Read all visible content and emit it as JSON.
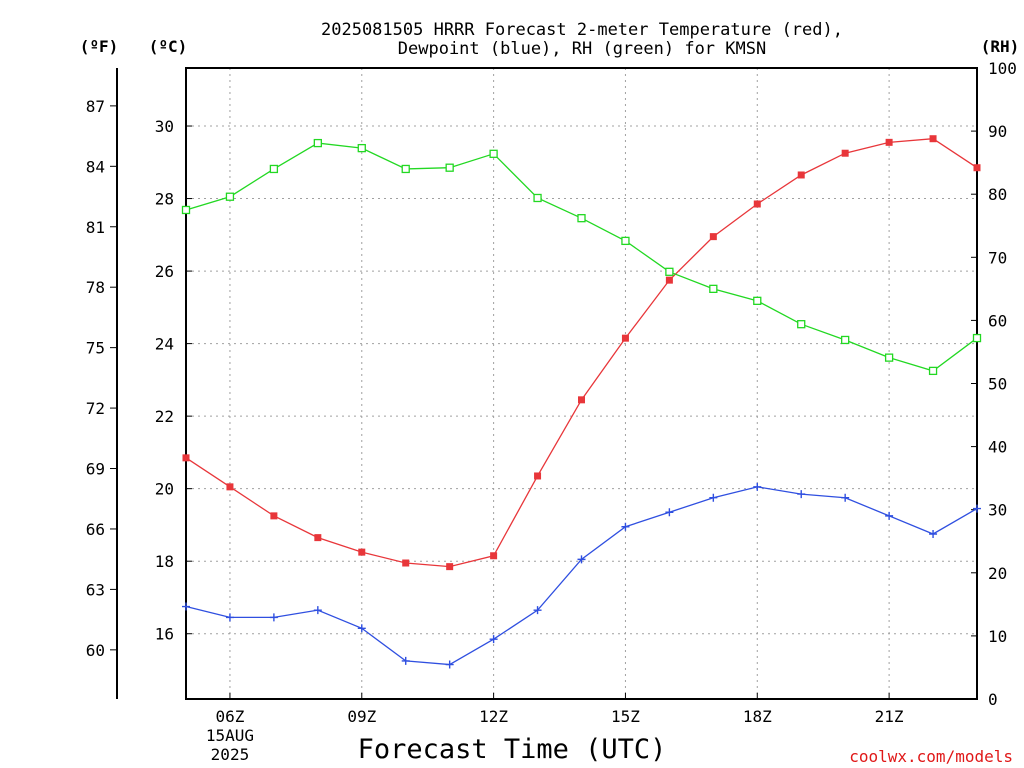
{
  "page": {
    "title_line1": "2025081505 HRRR Forecast 2-meter Temperature (red),",
    "title_line2": "Dewpoint (blue), RH (green) for KMSN",
    "credit": "coolwx.com/models"
  },
  "colors": {
    "temperature": "#e8363a",
    "dewpoint": "#2f4fe0",
    "rh": "#22d822",
    "credit": "#e01818"
  },
  "chart_data": {
    "type": "line",
    "title": "2025081505 HRRR Forecast 2-meter Temperature (red), Dewpoint (blue), RH (green) for KMSN",
    "xlabel": "Forecast Time (UTC)",
    "x_hours_utc": [
      5,
      6,
      7,
      8,
      9,
      10,
      11,
      12,
      13,
      14,
      15,
      16,
      17,
      18,
      19,
      20,
      21,
      22,
      23
    ],
    "xlim_hours": [
      5,
      23
    ],
    "x_ticks": [
      {
        "hour": 6,
        "label": "06Z",
        "date_line1": "15AUG",
        "date_line2": "2025"
      },
      {
        "hour": 9,
        "label": "09Z"
      },
      {
        "hour": 12,
        "label": "12Z"
      },
      {
        "hour": 15,
        "label": "15Z"
      },
      {
        "hour": 18,
        "label": "18Z"
      },
      {
        "hour": 21,
        "label": "21Z"
      }
    ],
    "axes": {
      "left_outer": {
        "unit_label": "(ºF)",
        "ticks": [
          60,
          63,
          66,
          69,
          72,
          75,
          78,
          81,
          84,
          87
        ]
      },
      "left_inner": {
        "unit_label": "(ºC)",
        "ticks": [
          16,
          18,
          20,
          22,
          24,
          26,
          28,
          30
        ],
        "ylim": [
          14.2,
          31.6
        ]
      },
      "right": {
        "unit_label": "(RH)",
        "ticks": [
          0,
          10,
          20,
          30,
          40,
          50,
          60,
          70,
          80,
          90,
          100
        ],
        "ylim": [
          0,
          100
        ]
      }
    },
    "grid": true,
    "series": [
      {
        "name": "Temperature",
        "color_key": "temperature",
        "axis": "left_inner",
        "marker": "filled-square",
        "values": [
          20.85,
          20.05,
          19.25,
          18.65,
          18.25,
          17.95,
          17.85,
          18.15,
          20.35,
          22.45,
          24.15,
          25.75,
          26.95,
          27.85,
          28.65,
          29.25,
          29.55,
          29.65,
          28.85
        ]
      },
      {
        "name": "Dewpoint",
        "color_key": "dewpoint",
        "axis": "left_inner",
        "marker": "plus",
        "values": [
          16.75,
          16.45,
          16.45,
          16.65,
          16.15,
          15.25,
          15.15,
          15.85,
          16.65,
          18.05,
          18.95,
          19.35,
          19.75,
          20.05,
          19.85,
          19.75,
          19.25,
          18.75,
          19.45
        ]
      },
      {
        "name": "RH",
        "color_key": "rh",
        "axis": "right",
        "marker": "open-square",
        "values": [
          77.5,
          79.6,
          84.0,
          88.1,
          87.3,
          84.0,
          84.2,
          86.4,
          79.4,
          76.2,
          72.6,
          67.7,
          65.0,
          63.1,
          59.4,
          56.9,
          54.1,
          52.0,
          57.2
        ]
      }
    ]
  }
}
